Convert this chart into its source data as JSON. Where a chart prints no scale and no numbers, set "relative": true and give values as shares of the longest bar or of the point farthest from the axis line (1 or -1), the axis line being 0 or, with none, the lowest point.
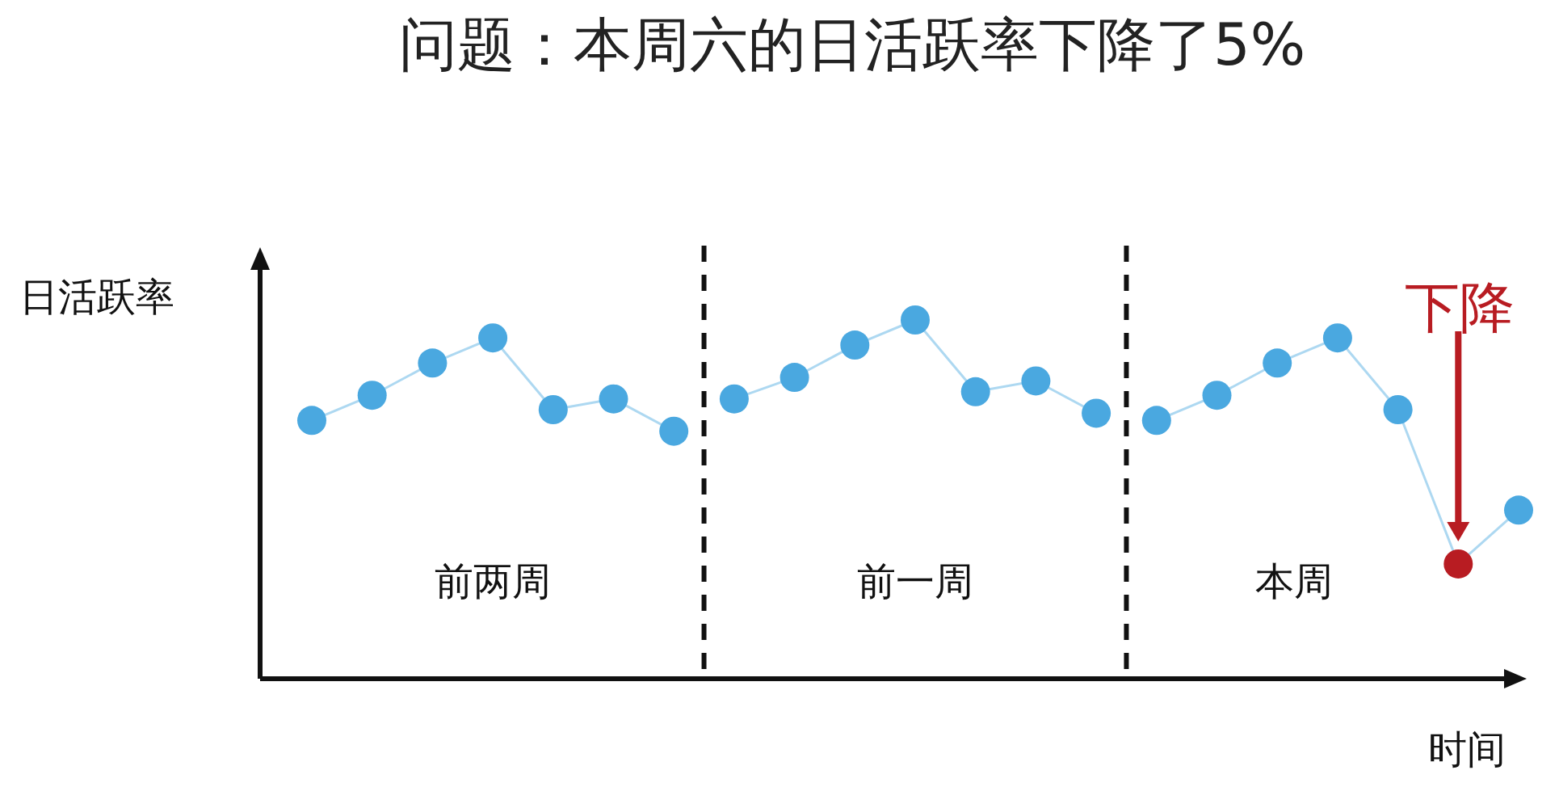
{
  "chart_data": {
    "type": "line",
    "title": "问题：本周六的日活跃率下降了5%",
    "ylabel": "日活跃率",
    "xlabel": "时间",
    "relative": true,
    "marker": "circle",
    "line_style": "solid",
    "categories": [
      null,
      null,
      null,
      null,
      null,
      null,
      null,
      null,
      null,
      null,
      null,
      null,
      null,
      null,
      null,
      null,
      null,
      null,
      null,
      null,
      null
    ],
    "series": [
      {
        "color": "#4aa8e0",
        "values": [
          0.72,
          0.79,
          0.88,
          0.95,
          0.75,
          0.78,
          0.69,
          null,
          null,
          null,
          null,
          null,
          null,
          null,
          null,
          null,
          null,
          null,
          null,
          null,
          null
        ]
      },
      {
        "color": "#4aa8e0",
        "values": [
          null,
          null,
          null,
          null,
          null,
          null,
          null,
          0.78,
          0.84,
          0.93,
          1.0,
          0.8,
          0.83,
          0.74,
          null,
          null,
          null,
          null,
          null,
          null,
          null
        ]
      },
      {
        "color": "#4aa8e0",
        "values": [
          null,
          null,
          null,
          null,
          null,
          null,
          null,
          null,
          null,
          null,
          null,
          null,
          null,
          null,
          0.72,
          0.79,
          0.88,
          0.95,
          0.75,
          0.32,
          0.47
        ],
        "colors": [
          null,
          null,
          null,
          null,
          null,
          null,
          null,
          null,
          null,
          null,
          null,
          null,
          null,
          null,
          "#4aa8e0",
          "#4aa8e0",
          "#4aa8e0",
          "#4aa8e0",
          "#4aa8e0",
          "#b81c22",
          "#4aa8e0"
        ]
      }
    ],
    "annotations": [
      "前两周",
      "前一周",
      "本周",
      "下降"
    ]
  }
}
